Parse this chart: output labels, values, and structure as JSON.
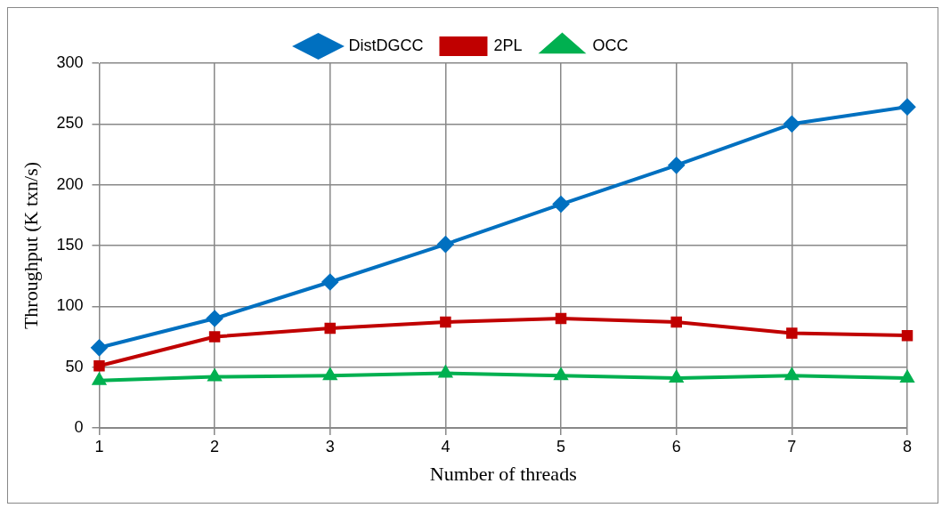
{
  "chart_data": {
    "type": "line",
    "xlabel": "Number of threads",
    "ylabel": "Throughput (K txn/s)",
    "categories": [
      "1",
      "2",
      "3",
      "4",
      "5",
      "6",
      "7",
      "8"
    ],
    "series": [
      {
        "name": "DistDGCC",
        "color": "#0070c0",
        "marker": "diamond",
        "values": [
          66,
          90,
          120,
          151,
          184,
          216,
          250,
          264
        ]
      },
      {
        "name": "2PL",
        "color": "#c00000",
        "marker": "square",
        "values": [
          51,
          75,
          82,
          87,
          90,
          87,
          78,
          76
        ]
      },
      {
        "name": "OCC",
        "color": "#00b050",
        "marker": "triangle",
        "values": [
          39,
          42,
          43,
          45,
          43,
          41,
          43,
          41
        ]
      }
    ],
    "ylim": [
      0,
      300
    ],
    "yticks": [
      0,
      50,
      100,
      150,
      200,
      250,
      300
    ],
    "grid": true,
    "legend": "top",
    "line_style": "solid"
  }
}
